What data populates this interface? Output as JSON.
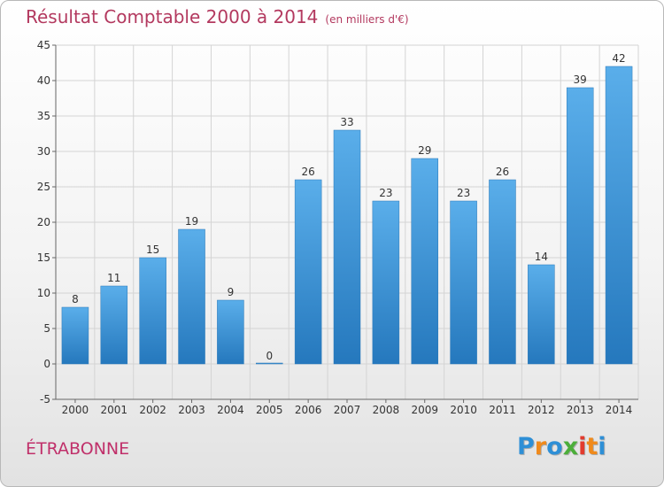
{
  "header": {
    "title": "Résultat Comptable 2000 à 2014",
    "unit": "(en milliers d'€)"
  },
  "footer": {
    "commune": "ÉTRABONNE",
    "logo_letters": [
      "P",
      "r",
      "o",
      "x",
      "i",
      "t",
      "i"
    ],
    "logo_colors": [
      "#2e8fd6",
      "#f08a1c",
      "#2e8fd6",
      "#4cae3a",
      "#e23b2e",
      "#f08a1c",
      "#2e8fd6"
    ]
  },
  "chart_data": {
    "type": "bar",
    "categories": [
      "2000",
      "2001",
      "2002",
      "2003",
      "2004",
      "2005",
      "2006",
      "2007",
      "2008",
      "2009",
      "2010",
      "2011",
      "2012",
      "2013",
      "2014"
    ],
    "values": [
      8,
      11,
      15,
      19,
      9,
      0,
      26,
      33,
      23,
      29,
      23,
      26,
      14,
      39,
      42
    ],
    "ylim": [
      -5,
      45
    ],
    "yticks": [
      -5,
      0,
      5,
      10,
      15,
      20,
      25,
      30,
      35,
      40,
      45
    ],
    "grid": true,
    "bar_color": "#3a8fd8"
  }
}
